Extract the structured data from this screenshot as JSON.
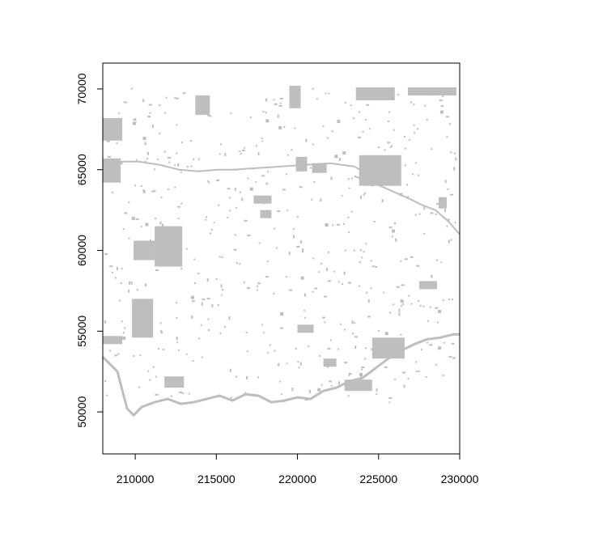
{
  "chart_data": {
    "type": "raster-map",
    "xlim": [
      208000,
      230000
    ],
    "ylim": [
      47400,
      71600
    ],
    "x_ticks": [
      210000,
      215000,
      220000,
      225000,
      230000
    ],
    "y_ticks": [
      50000,
      55000,
      60000,
      65000,
      70000
    ],
    "x_tick_labels": [
      "210000",
      "215000",
      "220000",
      "225000",
      "230000"
    ],
    "y_tick_labels": [
      "50000",
      "55000",
      "60000",
      "65000",
      "70000"
    ],
    "title": "",
    "xlabel": "",
    "ylabel": "",
    "legend": "none",
    "grid": false,
    "colors": {
      "raster": "#bebebe",
      "background": "#ffffff",
      "axis": "#000000"
    },
    "patches": [
      {
        "name": "west-edge-top",
        "x": [
          208000,
          209200
        ],
        "y": [
          66800,
          68200
        ]
      },
      {
        "name": "west-edge-mid",
        "x": [
          208000,
          209100
        ],
        "y": [
          64200,
          65700
        ]
      },
      {
        "name": "lake-left-a",
        "x": [
          209900,
          211200
        ],
        "y": [
          59400,
          60600
        ]
      },
      {
        "name": "lake-left-b",
        "x": [
          211200,
          212900
        ],
        "y": [
          59000,
          61500
        ]
      },
      {
        "name": "lake-left-c",
        "x": [
          209800,
          211100
        ],
        "y": [
          54600,
          57000
        ]
      },
      {
        "name": "west-edge-low",
        "x": [
          208000,
          209200
        ],
        "y": [
          54200,
          54700
        ]
      },
      {
        "name": "south-left",
        "x": [
          211800,
          213000
        ],
        "y": [
          51500,
          52200
        ]
      },
      {
        "name": "north-top-a",
        "x": [
          213700,
          214600
        ],
        "y": [
          68400,
          69600
        ]
      },
      {
        "name": "north-top-b",
        "x": [
          219500,
          220200
        ],
        "y": [
          68800,
          70200
        ]
      },
      {
        "name": "north-top-c",
        "x": [
          223600,
          226000
        ],
        "y": [
          69300,
          70100
        ]
      },
      {
        "name": "north-top-d",
        "x": [
          226800,
          229800
        ],
        "y": [
          69600,
          70100
        ]
      },
      {
        "name": "lake-center-a",
        "x": [
          217300,
          218400
        ],
        "y": [
          62900,
          63400
        ]
      },
      {
        "name": "lake-center-b",
        "x": [
          217700,
          218400
        ],
        "y": [
          62000,
          62500
        ]
      },
      {
        "name": "lake-center-c",
        "x": [
          219900,
          220600
        ],
        "y": [
          64900,
          65800
        ]
      },
      {
        "name": "lake-center-d",
        "x": [
          220900,
          221800
        ],
        "y": [
          64800,
          65400
        ]
      },
      {
        "name": "lake-right-a",
        "x": [
          223800,
          226400
        ],
        "y": [
          64000,
          65900
        ]
      },
      {
        "name": "lake-right-b",
        "x": [
          228700,
          229200
        ],
        "y": [
          62600,
          63300
        ]
      },
      {
        "name": "east-mid",
        "x": [
          227500,
          228600
        ],
        "y": [
          57600,
          58100
        ]
      },
      {
        "name": "southeast-a",
        "x": [
          224600,
          226600
        ],
        "y": [
          53300,
          54600
        ]
      },
      {
        "name": "south-c",
        "x": [
          220000,
          221000
        ],
        "y": [
          54900,
          55400
        ]
      },
      {
        "name": "south-d",
        "x": [
          221600,
          222400
        ],
        "y": [
          52800,
          53300
        ]
      },
      {
        "name": "south-e",
        "x": [
          222900,
          224600
        ],
        "y": [
          51300,
          52000
        ]
      }
    ],
    "boundary_line": {
      "x": [
        208000,
        208900,
        209500,
        209900,
        210400,
        211200,
        212000,
        212800,
        213600,
        214400,
        215200,
        216000,
        216800,
        217600,
        218400,
        219200,
        220000,
        220800,
        221600,
        222400,
        223200,
        224000,
        224800,
        225600,
        226400,
        227200,
        228000,
        228800,
        229600,
        230000
      ],
      "y": [
        53400,
        52500,
        50200,
        49800,
        50300,
        50600,
        50800,
        50500,
        50600,
        50800,
        51000,
        50700,
        51100,
        51000,
        50600,
        50700,
        50900,
        50800,
        51300,
        51500,
        51900,
        52100,
        52700,
        53300,
        53800,
        54200,
        54500,
        54600,
        54800,
        54800
      ]
    },
    "channel_lines": [
      {
        "name": "river-east",
        "x": [
          223500,
          224300,
          225100,
          226000,
          226900,
          227700,
          228500,
          229300,
          230000
        ],
        "y": [
          64600,
          64300,
          64000,
          63600,
          63200,
          62800,
          62500,
          61800,
          61000
        ]
      },
      {
        "name": "river-north",
        "x": [
          216000,
          217500,
          219000,
          220500,
          222000,
          223500,
          224500
        ],
        "y": [
          65000,
          65100,
          65200,
          65300,
          65400,
          65200,
          64600
        ]
      },
      {
        "name": "river-west",
        "x": [
          209000,
          210200,
          211500,
          212700,
          213900,
          215100,
          216300
        ],
        "y": [
          65500,
          65500,
          65300,
          65000,
          64900,
          65000,
          65000
        ]
      }
    ]
  }
}
